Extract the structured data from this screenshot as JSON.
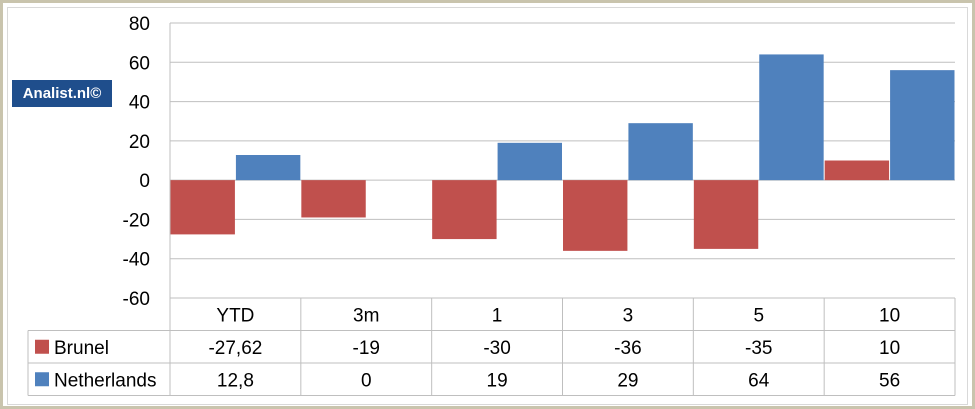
{
  "watermark": "Analist.nl©",
  "chart_data": {
    "type": "bar",
    "categories": [
      "YTD",
      "3m",
      "1",
      "3",
      "5",
      "10"
    ],
    "series": [
      {
        "name": "Brunel",
        "color": "#c0504d",
        "values": [
          -27.62,
          -19,
          -30,
          -36,
          -35,
          10
        ],
        "labels": [
          "-27,62",
          "-19",
          "-30",
          "-36",
          "-35",
          "10"
        ]
      },
      {
        "name": "Netherlands",
        "color": "#4f81bd",
        "values": [
          12.8,
          0,
          19,
          29,
          64,
          56
        ],
        "labels": [
          "12,8",
          "0",
          "19",
          "29",
          "64",
          "56"
        ]
      }
    ],
    "ylim": [
      -60,
      80
    ],
    "yticks": [
      80,
      60,
      40,
      20,
      0,
      -20,
      -40,
      -60
    ],
    "grid": true,
    "legend": "data-table-left"
  }
}
